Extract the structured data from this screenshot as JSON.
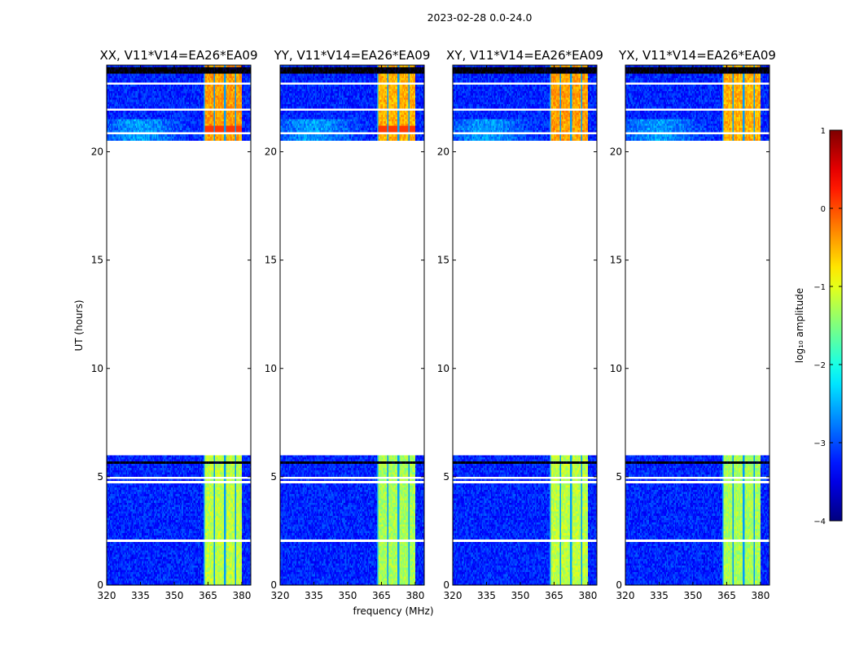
{
  "chart_data": {
    "type": "heatmap",
    "suptitle": "2023-02-28 0.0-24.0",
    "xlabel": "frequency (MHz)",
    "ylabel": "UT (hours)",
    "xlim": [
      320,
      384
    ],
    "ylim": [
      0,
      24
    ],
    "xticks": [
      "320",
      "335",
      "350",
      "365",
      "380"
    ],
    "xtick_values": [
      320,
      335,
      350,
      365,
      380
    ],
    "yticks": [
      "0",
      "5",
      "10",
      "15",
      "20"
    ],
    "ytick_values": [
      0,
      5,
      10,
      15,
      20
    ],
    "panels": [
      {
        "title": "XX, V11*V14=EA26*EA09"
      },
      {
        "title": "YY, V11*V14=EA26*EA09"
      },
      {
        "title": "XY, V11*V14=EA26*EA09"
      },
      {
        "title": "YX, V11*V14=EA26*EA09"
      }
    ],
    "data_time_ranges_hours": [
      [
        0,
        6.1
      ],
      [
        20.5,
        24
      ]
    ],
    "flagged_time_range_hours": [
      6.1,
      20.5
    ],
    "high_amplitude_band_MHz": [
      362,
      381
    ],
    "typical_log_amplitude": {
      "background": -3.2,
      "band_early": -1.2,
      "band_late": -0.4
    },
    "colorbar": {
      "label": "log₁₀ amplitude",
      "colormap": "jet",
      "range": [
        -4,
        1
      ],
      "ticks": [
        "1",
        "0",
        "−1",
        "−2",
        "−3",
        "−4"
      ],
      "tick_values": [
        1,
        0,
        -1,
        -2,
        -3,
        -4
      ]
    }
  }
}
